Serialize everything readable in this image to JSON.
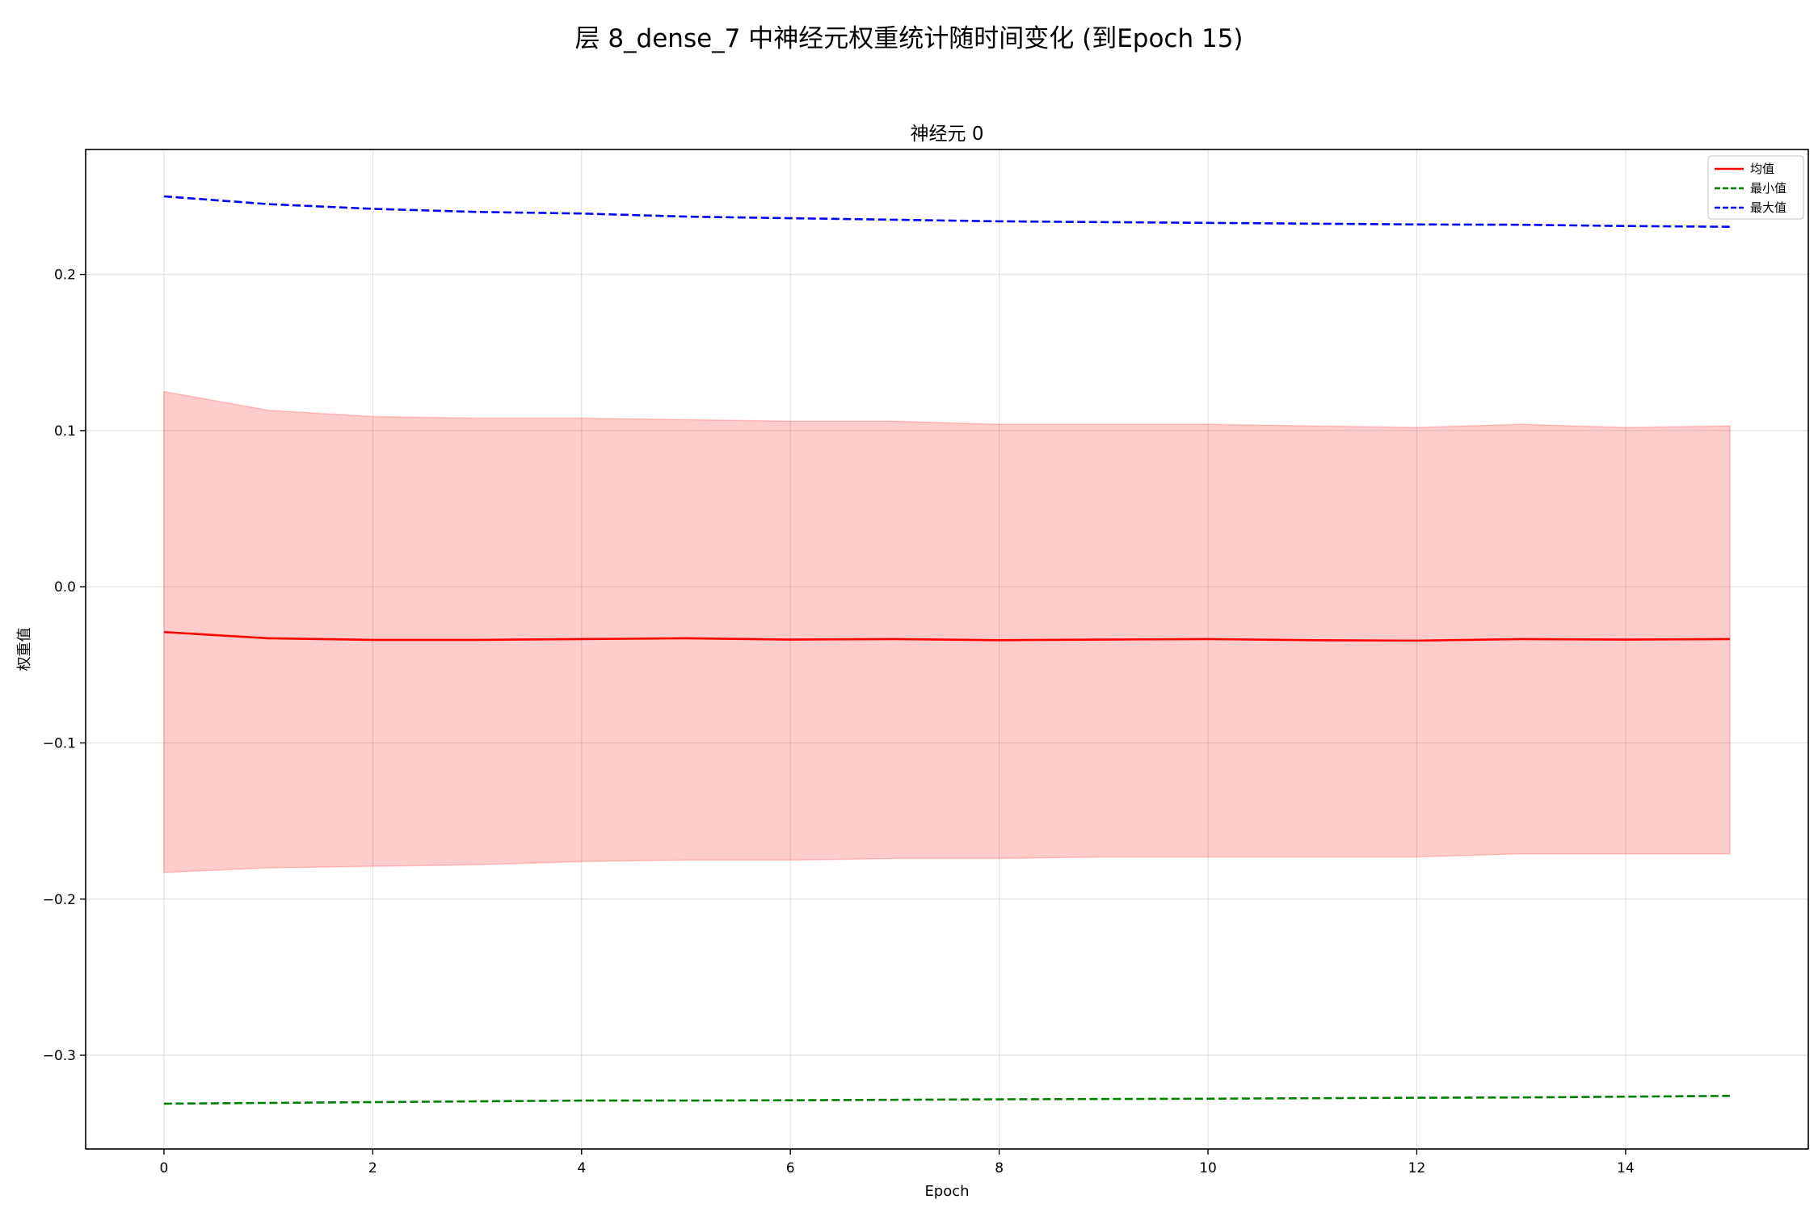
{
  "figure_title": "层 8_dense_7 中神经元权重统计随时间变化 (到Epoch 15)",
  "chart_data": {
    "type": "line",
    "title": "神经元 0",
    "xlabel": "Epoch",
    "ylabel": "权重值",
    "xlim": [
      -0.75,
      15.75
    ],
    "ylim": [
      -0.36,
      0.28
    ],
    "xticks": [
      0,
      2,
      4,
      6,
      8,
      10,
      12,
      14
    ],
    "yticks": [
      -0.3,
      -0.2,
      -0.1,
      0.0,
      0.1,
      0.2
    ],
    "xtick_labels": [
      "0",
      "2",
      "4",
      "6",
      "8",
      "10",
      "12",
      "14"
    ],
    "ytick_labels": [
      "−0.3",
      "−0.2",
      "−0.1",
      "0.0",
      "0.1",
      "0.2"
    ],
    "grid": true,
    "legend_position": "top-right",
    "x": [
      0,
      1,
      2,
      3,
      4,
      5,
      6,
      7,
      8,
      9,
      10,
      11,
      12,
      13,
      14,
      15
    ],
    "series": [
      {
        "name": "均值",
        "style": "solid",
        "color": "#ff0000",
        "values": [
          -0.029,
          -0.033,
          -0.034,
          -0.034,
          -0.0335,
          -0.033,
          -0.0338,
          -0.0335,
          -0.0342,
          -0.0338,
          -0.0335,
          -0.0342,
          -0.0345,
          -0.0335,
          -0.0338,
          -0.0335
        ]
      },
      {
        "name": "最小值",
        "style": "dashed",
        "color": "#008000",
        "values": [
          -0.331,
          -0.3305,
          -0.33,
          -0.3295,
          -0.329,
          -0.329,
          -0.3288,
          -0.3285,
          -0.3282,
          -0.328,
          -0.3278,
          -0.3275,
          -0.3272,
          -0.327,
          -0.3265,
          -0.326
        ]
      },
      {
        "name": "最大值",
        "style": "dashed",
        "color": "#0000ff",
        "values": [
          0.25,
          0.245,
          0.242,
          0.24,
          0.239,
          0.237,
          0.236,
          0.235,
          0.234,
          0.2335,
          0.233,
          0.2325,
          0.232,
          0.2318,
          0.231,
          0.2305
        ]
      }
    ],
    "band": {
      "color": "#ff0000",
      "opacity": 0.2,
      "upper": [
        0.125,
        0.113,
        0.109,
        0.108,
        0.108,
        0.107,
        0.106,
        0.106,
        0.104,
        0.104,
        0.104,
        0.103,
        0.102,
        0.104,
        0.102,
        0.103
      ],
      "lower": [
        -0.183,
        -0.18,
        -0.179,
        -0.178,
        -0.176,
        -0.175,
        -0.175,
        -0.174,
        -0.174,
        -0.173,
        -0.173,
        -0.173,
        -0.173,
        -0.171,
        -0.171,
        -0.171
      ]
    }
  }
}
